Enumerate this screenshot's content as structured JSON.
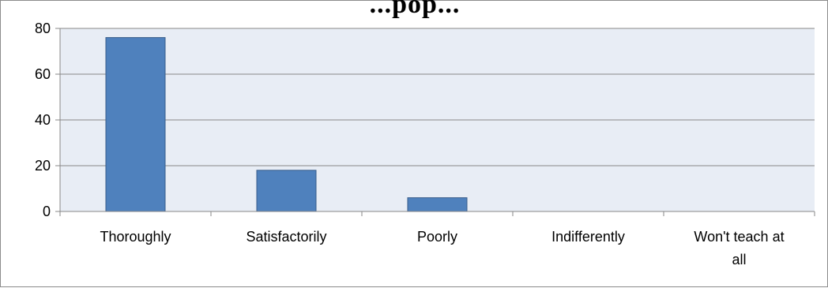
{
  "chart_data": {
    "type": "bar",
    "title": "...pop...",
    "categories": [
      [
        "Thoroughly"
      ],
      [
        "Satisfactorily"
      ],
      [
        "Poorly"
      ],
      [
        "Indifferently"
      ],
      [
        "Won't teach at",
        "all"
      ]
    ],
    "values": [
      76,
      18,
      6,
      0,
      0
    ],
    "yticks": [
      0,
      20,
      40,
      60,
      80
    ],
    "ylim": [
      0,
      80
    ],
    "grid": true,
    "colors": {
      "bar": "#4f81bd",
      "bar_border": "#385d8a",
      "plot_bg": "#e8edf5",
      "grid": "#878787"
    }
  }
}
